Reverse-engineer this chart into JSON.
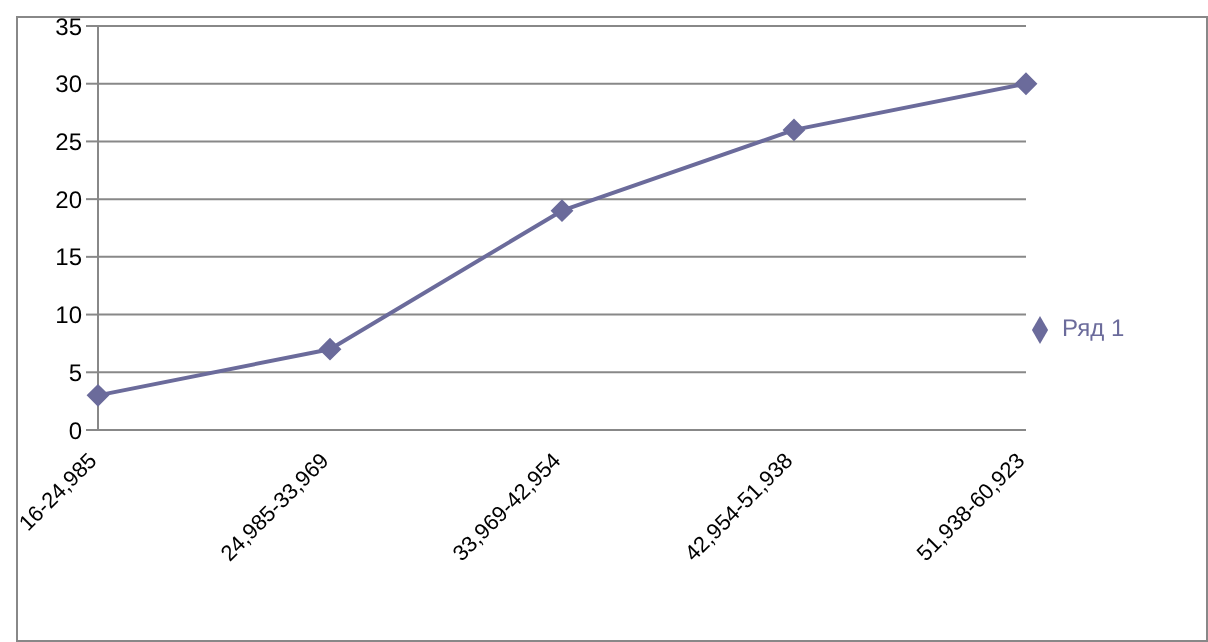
{
  "chart_data": {
    "type": "line",
    "categories": [
      "16-24,985",
      "24,985-33,969",
      "33,969-42,954",
      "42,954-51,938",
      "51,938-60,923"
    ],
    "series": [
      {
        "name": "Ряд 1",
        "color": "#6b6b9b",
        "values": [
          3,
          7,
          19,
          26,
          30
        ]
      }
    ],
    "ylim": [
      0,
      35
    ],
    "yticks": [
      0,
      5,
      10,
      15,
      20,
      25,
      30,
      35
    ],
    "grid": "y",
    "legend": "right",
    "marker": "diamond"
  }
}
